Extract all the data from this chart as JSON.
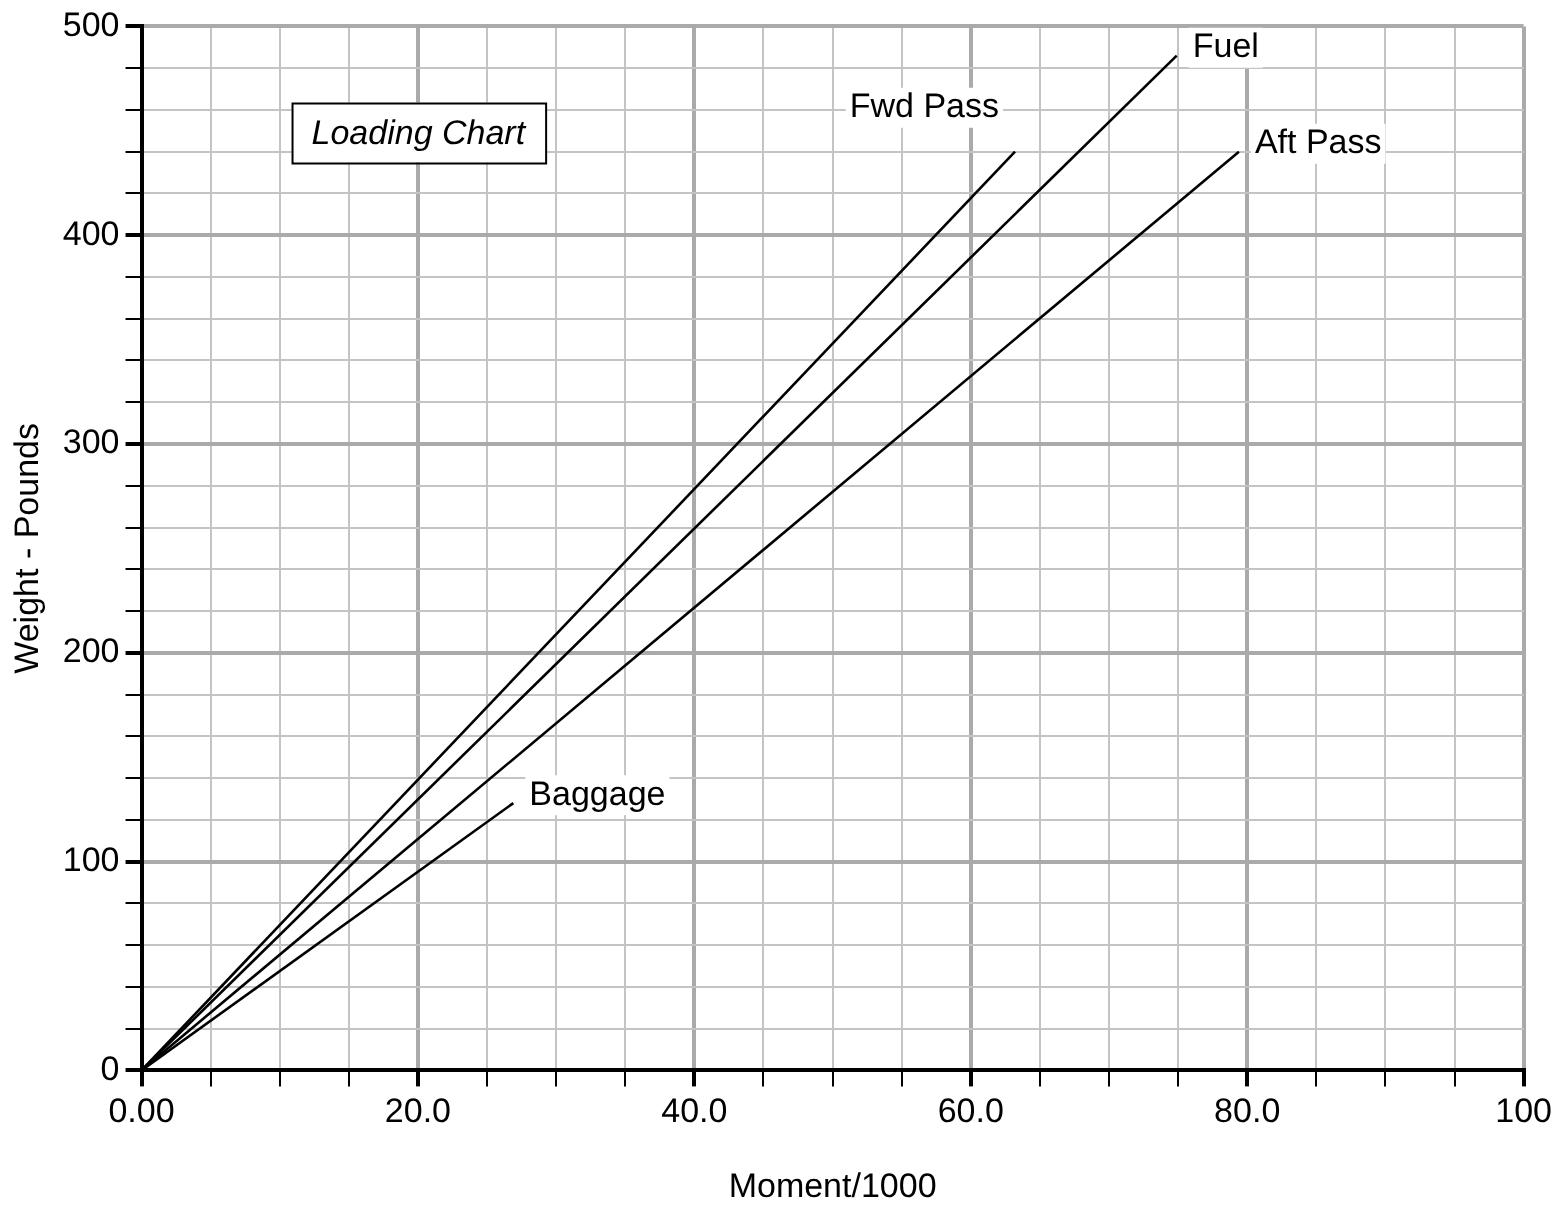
{
  "chart_data": {
    "type": "line",
    "title": "Loading Chart",
    "xlabel": "Moment/1000",
    "ylabel": "Weight - Pounds",
    "series": [
      {
        "name": "Fwd Pass",
        "color": "#000000",
        "x": [
          0,
          63.2
        ],
        "values": [
          0,
          440
        ]
      },
      {
        "name": "Fuel",
        "color": "#000000",
        "x": [
          0,
          74.9
        ],
        "values": [
          0,
          486
        ]
      },
      {
        "name": "Aft Pass",
        "color": "#000000",
        "x": [
          0,
          79.4
        ],
        "values": [
          0,
          440
        ]
      },
      {
        "name": "Baggage",
        "color": "#000000",
        "x": [
          0,
          26.9
        ],
        "values": [
          0,
          128
        ]
      }
    ],
    "xlim": [
      0,
      100
    ],
    "xticks": [
      {
        "value": 0,
        "label": "0.00"
      },
      {
        "value": 5,
        "label": null
      },
      {
        "value": 10,
        "label": null
      },
      {
        "value": 15,
        "label": null
      },
      {
        "value": 20,
        "label": "20.0"
      },
      {
        "value": 25,
        "label": null
      },
      {
        "value": 30,
        "label": null
      },
      {
        "value": 35,
        "label": null
      },
      {
        "value": 40,
        "label": "40.0"
      },
      {
        "value": 45,
        "label": null
      },
      {
        "value": 50,
        "label": null
      },
      {
        "value": 55,
        "label": null
      },
      {
        "value": 60,
        "label": "60.0"
      },
      {
        "value": 65,
        "label": null
      },
      {
        "value": 70,
        "label": null
      },
      {
        "value": 75,
        "label": null
      },
      {
        "value": 80,
        "label": "80.0"
      },
      {
        "value": 85,
        "label": null
      },
      {
        "value": 90,
        "label": null
      },
      {
        "value": 95,
        "label": null
      },
      100
    ],
    "ylim": [
      0,
      500
    ],
    "yticks": [
      0,
      {
        "value": 20,
        "label": null
      },
      {
        "value": 40,
        "label": null
      },
      {
        "value": 60,
        "label": null
      },
      {
        "value": 80,
        "label": null
      },
      100,
      {
        "value": 120,
        "label": null
      },
      {
        "value": 140,
        "label": null
      },
      {
        "value": 160,
        "label": null
      },
      {
        "value": 180,
        "label": null
      },
      200,
      {
        "value": 220,
        "label": null
      },
      {
        "value": 240,
        "label": null
      },
      {
        "value": 260,
        "label": null
      },
      {
        "value": 280,
        "label": null
      },
      300,
      {
        "value": 320,
        "label": null
      },
      {
        "value": 340,
        "label": null
      },
      {
        "value": 360,
        "label": null
      },
      {
        "value": 380,
        "label": null
      },
      400,
      {
        "value": 420,
        "label": null
      },
      {
        "value": 440,
        "label": null
      },
      {
        "value": 460,
        "label": null
      },
      {
        "value": 480,
        "label": null
      },
      500
    ],
    "grid": true,
    "legend": false,
    "marker": "none",
    "line_style": "solid"
  }
}
